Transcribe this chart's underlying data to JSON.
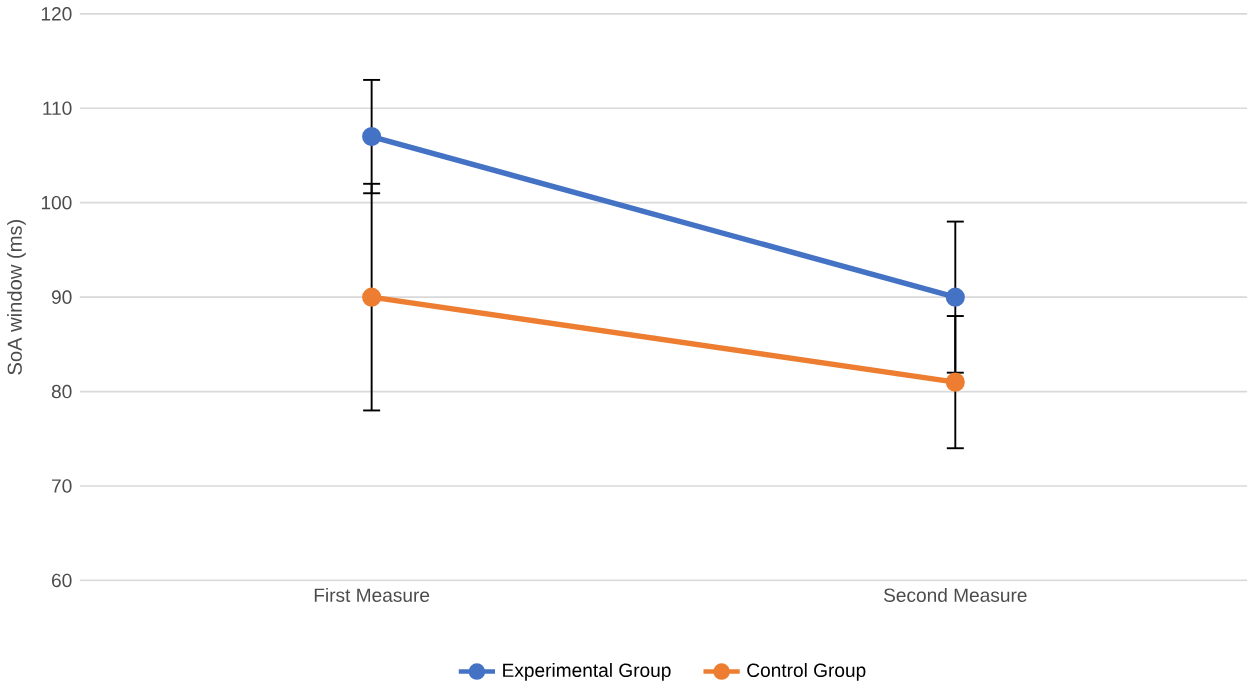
{
  "chart_data": {
    "type": "line",
    "ylabel": "SoA window (ms)",
    "categories": [
      "First Measure",
      "Second Measure"
    ],
    "series": [
      {
        "name": "Experimental Group",
        "color": "#4472c4",
        "values": [
          107,
          90
        ],
        "errors": [
          6,
          8
        ]
      },
      {
        "name": "Control Group",
        "color": "#ed7d31",
        "values": [
          90,
          81
        ],
        "errors": [
          12,
          7
        ]
      }
    ],
    "ylim": [
      60,
      120
    ],
    "yticks": [
      60,
      70,
      80,
      90,
      100,
      110,
      120
    ],
    "grid": "y",
    "legend": "bottom",
    "marker": "circle"
  }
}
